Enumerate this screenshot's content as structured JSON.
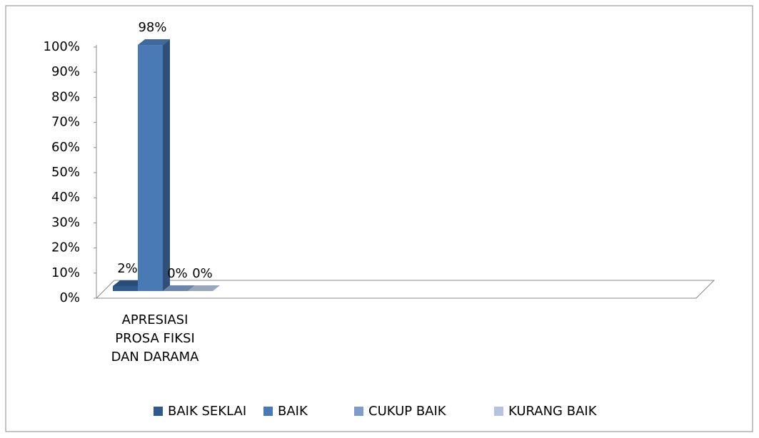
{
  "chart_data": {
    "type": "bar3d",
    "categories": [
      "APRESIASI PROSA FIKSI DAN DARAMA"
    ],
    "series": [
      {
        "name": "BAIK SEKLAI",
        "color": "#2f5a8c",
        "values": [
          2
        ],
        "value_labels": [
          "2%"
        ]
      },
      {
        "name": "BAIK",
        "color": "#4a7ab6",
        "values": [
          98
        ],
        "value_labels": [
          "98%"
        ]
      },
      {
        "name": "CUKUP BAIK",
        "color": "#7f9dcb",
        "values": [
          0
        ],
        "value_labels": [
          "0%"
        ]
      },
      {
        "name": "KURANG BAIK",
        "color": "#b3c3e0",
        "values": [
          0
        ],
        "value_labels": [
          "0%"
        ]
      }
    ],
    "ylim": [
      0,
      100
    ],
    "yticks": [
      {
        "value": 0,
        "label": "0%"
      },
      {
        "value": 10,
        "label": "10%"
      },
      {
        "value": 20,
        "label": "20%"
      },
      {
        "value": 30,
        "label": "30%"
      },
      {
        "value": 40,
        "label": "40%"
      },
      {
        "value": 50,
        "label": "50%"
      },
      {
        "value": 60,
        "label": "60%"
      },
      {
        "value": 70,
        "label": "70%"
      },
      {
        "value": 80,
        "label": "80%"
      },
      {
        "value": 90,
        "label": "90%"
      },
      {
        "value": 100,
        "label": "100%"
      }
    ],
    "legend": "bottom"
  }
}
